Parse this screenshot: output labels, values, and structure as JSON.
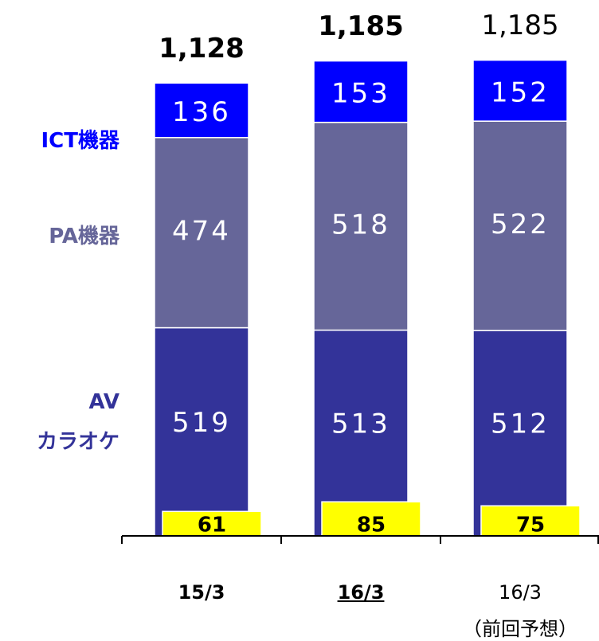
{
  "chart_data": {
    "type": "stacked_bar",
    "categories": [
      "15/3",
      "16/3",
      "16/3"
    ],
    "category_sublabels": [
      null,
      null,
      "（前回予想）"
    ],
    "series": [
      {
        "name": "AV\nカラオケ",
        "color": "#333399",
        "values": [
          519,
          513,
          512
        ]
      },
      {
        "name": "PA機器",
        "color": "#666699",
        "values": [
          474,
          518,
          522
        ]
      },
      {
        "name": "ICT機器",
        "color": "#0000ff",
        "values": [
          136,
          153,
          152
        ]
      }
    ],
    "totals": [
      1128,
      1185,
      1185
    ],
    "total_labels": [
      "1,128",
      "1,185",
      "1,185"
    ],
    "overlay": {
      "color": "#ffff00",
      "values": [
        61,
        85,
        75
      ]
    },
    "ylim": [
      0,
      1336
    ]
  }
}
